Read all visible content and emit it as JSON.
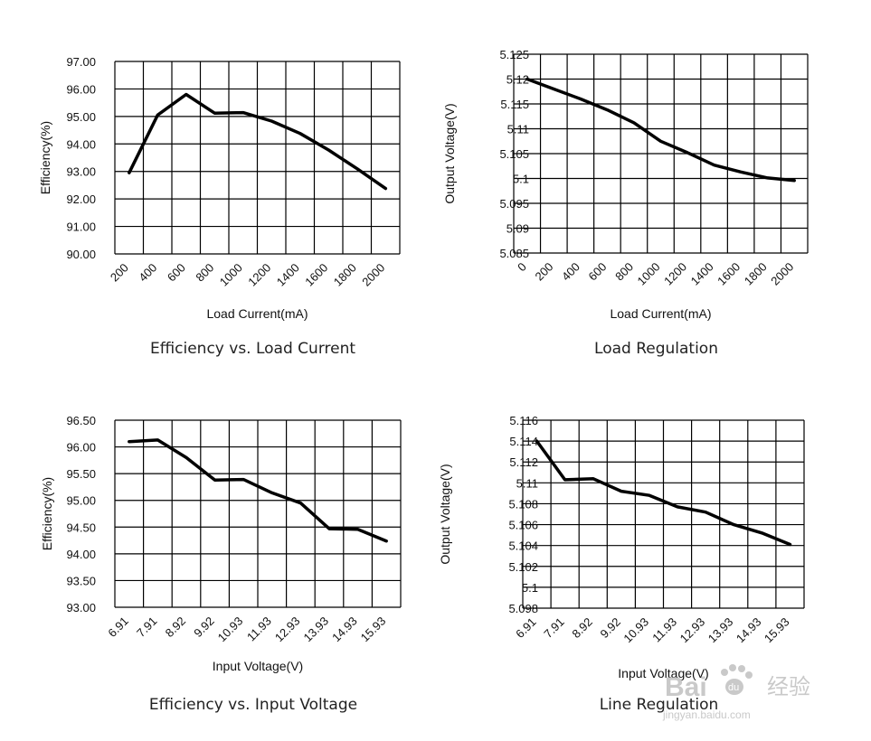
{
  "chart_data": [
    {
      "type": "line",
      "title": "Efficiency vs. Load Current",
      "xlabel": "Load Current(mA)",
      "ylabel": "Efficiency(%)",
      "categories": [
        "200",
        "400",
        "600",
        "800",
        "1000",
        "1200",
        "1400",
        "1600",
        "1800",
        "2000"
      ],
      "ytick_labels": [
        "90.00",
        "91.00",
        "92.00",
        "93.00",
        "94.00",
        "95.00",
        "96.00",
        "97.00"
      ],
      "ylim": [
        90,
        97
      ],
      "grid": true,
      "series": [
        {
          "name": "Efficiency",
          "x": [
            200,
            400,
            600,
            800,
            1000,
            1200,
            1400,
            1600,
            1800,
            2000
          ],
          "values": [
            92.95,
            95.05,
            95.8,
            95.12,
            95.14,
            94.83,
            94.38,
            93.78,
            93.1,
            92.38
          ]
        }
      ]
    },
    {
      "type": "line",
      "title": "Load Regulation",
      "xlabel": "Load Current(mA)",
      "ylabel": "Output Voltage(V)",
      "categories": [
        "0",
        "200",
        "400",
        "600",
        "800",
        "1000",
        "1200",
        "1400",
        "1600",
        "1800",
        "2000"
      ],
      "ytick_labels": [
        "5.085",
        "5.09",
        "5.095",
        "5.1",
        "5.105",
        "5.11",
        "5.115",
        "5.12",
        "5.125"
      ],
      "ylim": [
        5.085,
        5.125
      ],
      "grid": true,
      "series": [
        {
          "name": "Output Voltage",
          "x": [
            0,
            200,
            400,
            600,
            800,
            1000,
            1200,
            1400,
            1600,
            1800,
            2000
          ],
          "values": [
            5.12,
            5.118,
            5.116,
            5.1138,
            5.1112,
            5.1075,
            5.1052,
            5.1027,
            5.1013,
            5.1001,
            5.0996
          ]
        }
      ]
    },
    {
      "type": "line",
      "title": "Efficiency vs. Input Voltage",
      "xlabel": "Input Voltage(V)",
      "ylabel": "Efficiency(%)",
      "categories": [
        "6.91",
        "7.91",
        "8.92",
        "9.92",
        "10.93",
        "11.93",
        "12.93",
        "13.93",
        "14.93",
        "15.93"
      ],
      "ytick_labels": [
        "93.00",
        "93.50",
        "94.00",
        "94.50",
        "95.00",
        "95.50",
        "96.00",
        "96.50"
      ],
      "ylim": [
        93,
        96.5
      ],
      "grid": true,
      "series": [
        {
          "name": "Efficiency",
          "x": [
            6.91,
            7.91,
            8.92,
            9.92,
            10.93,
            11.93,
            12.93,
            13.93,
            14.93,
            15.93
          ],
          "values": [
            96.1,
            96.13,
            95.8,
            95.38,
            95.39,
            95.14,
            94.95,
            94.47,
            94.46,
            94.24
          ]
        }
      ]
    },
    {
      "type": "line",
      "title": "Line Regulation",
      "xlabel": "Input Voltage(V)",
      "ylabel": "Output Voltage(V)",
      "categories": [
        "6.91",
        "7.91",
        "8.92",
        "9.92",
        "10.93",
        "11.93",
        "12.93",
        "13.93",
        "14.93",
        "15.93"
      ],
      "ytick_labels": [
        "5.098",
        "5.1",
        "5.102",
        "5.104",
        "5.106",
        "5.108",
        "5.11",
        "5.112",
        "5.114",
        "5.116"
      ],
      "ylim": [
        5.098,
        5.116
      ],
      "grid": true,
      "series": [
        {
          "name": "Output Voltage",
          "x": [
            6.91,
            7.91,
            8.92,
            9.92,
            10.93,
            11.93,
            12.93,
            13.93,
            14.93,
            15.93
          ],
          "values": [
            5.114,
            5.1103,
            5.1104,
            5.1092,
            5.1088,
            5.1077,
            5.1072,
            5.106,
            5.1052,
            5.1041
          ]
        }
      ]
    }
  ],
  "watermark": {
    "brand": "Bai",
    "paw": "du",
    "cn": "经验",
    "url": "jingyan.baidu.com"
  }
}
